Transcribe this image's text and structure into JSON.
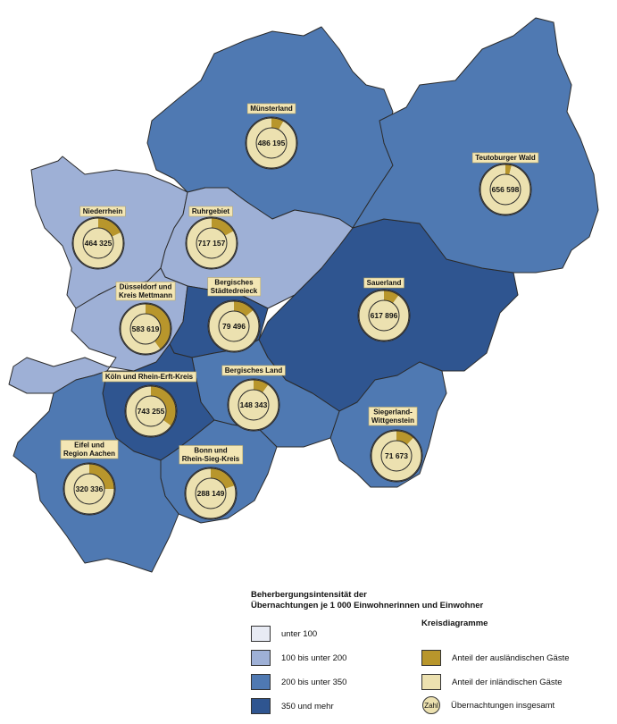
{
  "colors": {
    "class_1": "#e8ebf4",
    "class_2": "#9eb0d6",
    "class_3": "#4f79b2",
    "class_4": "#2f5590",
    "foreign": "#b8962c",
    "domestic": "#ece1b0",
    "border": "#2b2b2b"
  },
  "regions": [
    {
      "name": "Münsterland",
      "total": "486 195",
      "foreign_share": 0.08
    },
    {
      "name": "Teutoburger Wald",
      "total": "656 598",
      "foreign_share": 0.04
    },
    {
      "name": "Niederrhein",
      "total": "464 325",
      "foreign_share": 0.18
    },
    {
      "name": "Ruhrgebiet",
      "total": "717 157",
      "foreign_share": 0.17
    },
    {
      "name": "Düsseldorf und\nKreis Mettmann",
      "total": "583 619",
      "foreign_share": 0.4
    },
    {
      "name": "Bergisches\nStädtedreieck",
      "total": "79 496",
      "foreign_share": 0.14
    },
    {
      "name": "Sauerland",
      "total": "617 896",
      "foreign_share": 0.1
    },
    {
      "name": "Köln und Rhein-Erft-Kreis",
      "total": "743 255",
      "foreign_share": 0.35
    },
    {
      "name": "Bergisches Land",
      "total": "148 343",
      "foreign_share": 0.1
    },
    {
      "name": "Siegerland-\nWittgenstein",
      "total": "71 673",
      "foreign_share": 0.12
    },
    {
      "name": "Eifel und\nRegion Aachen",
      "total": "320 336",
      "foreign_share": 0.25
    },
    {
      "name": "Bonn und\nRhein-Sieg-Kreis",
      "total": "288 149",
      "foreign_share": 0.2
    }
  ],
  "legend": {
    "title_line1": "Beherbergungsintensität der",
    "title_line2": "Übernachtungen je 1 000 Einwohnerinnen und Einwohner",
    "classes": [
      "unter 100",
      "100 bis unter 200",
      "200 bis unter 350",
      "350 und mehr"
    ],
    "pie_title": "Kreisdiagramme",
    "pie_foreign": "Anteil der ausländischen Gäste",
    "pie_domestic": "Anteil der inländischen Gäste",
    "pie_total_symbol": "Zahl",
    "pie_total": "Übernachtungen insgesamt"
  }
}
